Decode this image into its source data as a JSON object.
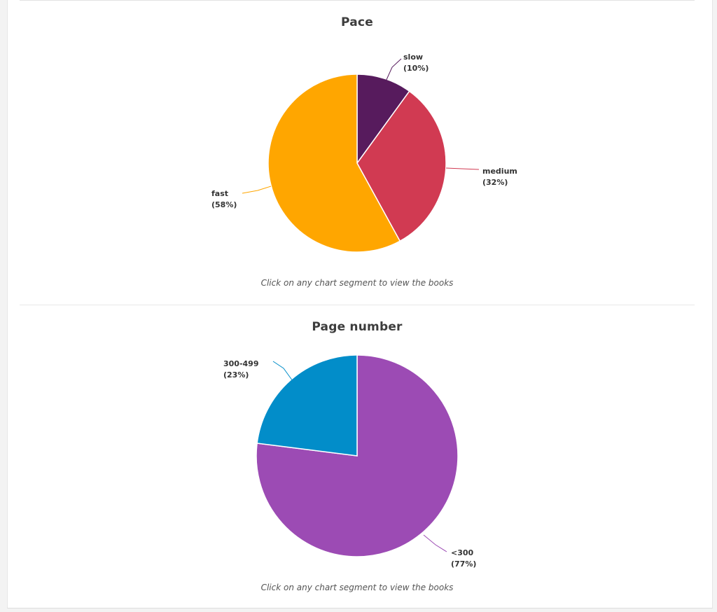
{
  "chart_data": [
    {
      "type": "pie",
      "title": "Pace",
      "hint": "Click on any chart segment to view the books",
      "slices": [
        {
          "label": "slow",
          "percent_label": "(10%)",
          "value": 10,
          "color": "#571b5d"
        },
        {
          "label": "medium",
          "percent_label": "(32%)",
          "value": 32,
          "color": "#d13a52"
        },
        {
          "label": "fast",
          "percent_label": "(58%)",
          "value": 58,
          "color": "#ffa600"
        }
      ]
    },
    {
      "type": "pie",
      "title": "Page number",
      "hint": "Click on any chart segment to view the books",
      "slices": [
        {
          "label": "<300",
          "percent_label": "(77%)",
          "value": 77,
          "color": "#9c4bb4"
        },
        {
          "label": "300-499",
          "percent_label": "(23%)",
          "value": 23,
          "color": "#028dc9"
        }
      ]
    }
  ]
}
